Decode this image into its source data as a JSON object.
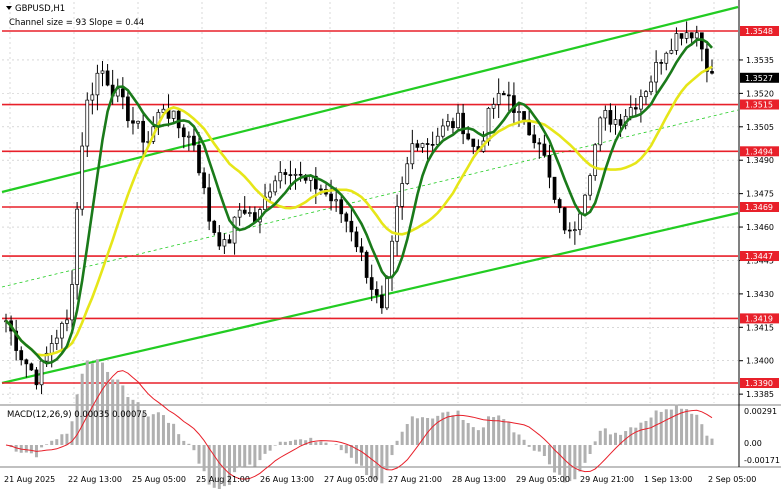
{
  "header": {
    "symbol": "GBPUSD,H1",
    "subtitle": "Channel size = 93 Slope = 0.44"
  },
  "macd": {
    "label": "MACD(12,26,9) 0.00035 0.00075",
    "scale": [
      "0.00291",
      "0.00",
      "-0.00171"
    ]
  },
  "chart_data": {
    "type": "candlestick",
    "ylim": [
      1.338,
      1.356
    ],
    "price_scale": [
      "1.3535",
      "1.3520",
      "1.3505",
      "1.3490",
      "1.3475",
      "1.3460",
      "1.3445",
      "1.3430",
      "1.3415",
      "1.3400",
      "1.3385"
    ],
    "level_labels": [
      "1.3548",
      "1.3515",
      "1.3494",
      "1.3469",
      "1.3447",
      "1.3419",
      "1.3390"
    ],
    "current_price": "1.3527",
    "x_labels": [
      "21 Aug 2025",
      "22 Aug 13:00",
      "25 Aug 05:00",
      "25 Aug 21:00",
      "26 Aug 13:00",
      "27 Aug 05:00",
      "27 Aug 21:00",
      "28 Aug 13:00",
      "29 Aug 05:00",
      "29 Aug 21:00",
      "1 Sep 13:00",
      "2 Sep 05:00"
    ],
    "close_path": [
      1.3418,
      1.3402,
      1.3392,
      1.341,
      1.3418,
      1.3512,
      1.3532,
      1.352,
      1.3508,
      1.3498,
      1.3515,
      1.3505,
      1.3498,
      1.3462,
      1.345,
      1.347,
      1.3462,
      1.3482,
      1.3488,
      1.348,
      1.3478,
      1.347,
      1.346,
      1.344,
      1.342,
      1.347,
      1.35,
      1.3498,
      1.3505,
      1.3508,
      1.3492,
      1.3515,
      1.352,
      1.3505,
      1.35,
      1.347,
      1.3455,
      1.348,
      1.351,
      1.3508,
      1.3515,
      1.3525,
      1.354,
      1.3548,
      1.3548,
      1.3527
    ],
    "colors": {
      "levels": "#e8202a",
      "channel": "#22cc22",
      "ma_fast": "#1a7a1a",
      "ma_slow": "#e6e619",
      "candle": "#000000"
    }
  }
}
